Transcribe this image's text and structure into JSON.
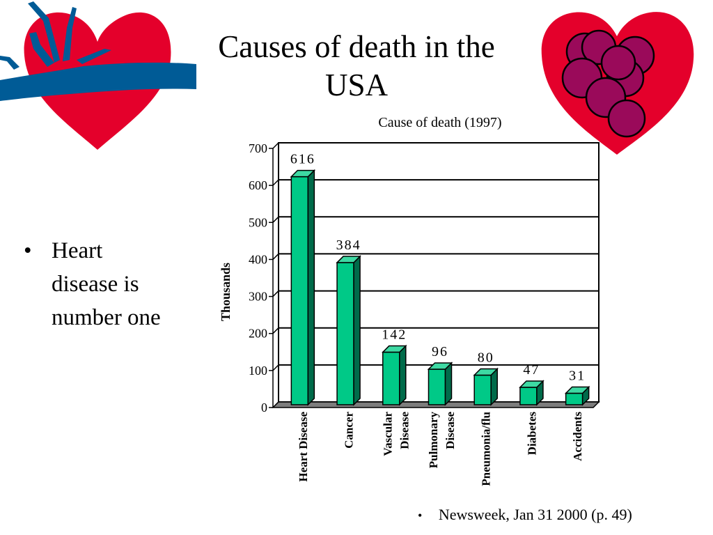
{
  "slide": {
    "title_line1": "Causes of death in the",
    "title_line2": "USA",
    "bullet": {
      "marker": "•",
      "lines": [
        "Heart",
        "disease is",
        "number one"
      ]
    },
    "source": {
      "marker": "•",
      "text": "Newsweek, Jan 31 2000 (p. 49)"
    }
  },
  "icons": {
    "left": "heart-with-blue-vessel-icon",
    "right": "heart-with-purple-cells-icon"
  },
  "colors": {
    "heart_red": "#e4002b",
    "vessel_blue": "#005b96",
    "cell_purple": "#9a0a5a",
    "bar_face": "#00c987",
    "bar_side": "#006b4a",
    "bar_top": "#3ed9a3",
    "floor": "#7d7d7d"
  },
  "chart_data": {
    "type": "bar",
    "title": "Cause of death (1997)",
    "ylabel": "Thousands",
    "xlabel": "",
    "categories": [
      "Heart Disease",
      "Cancer",
      "Vascular Disease",
      "Pulmonary Disease",
      "Pneumonia/flu",
      "Diabetes",
      "Accidents"
    ],
    "category_label_lines": [
      [
        "Heart Disease"
      ],
      [
        "Cancer"
      ],
      [
        "Vascular",
        "Disease"
      ],
      [
        "Pulmonary",
        "Disease"
      ],
      [
        "Pneumonia/flu"
      ],
      [
        "Diabetes"
      ],
      [
        "Accidents"
      ]
    ],
    "values": [
      616,
      384,
      142,
      96,
      80,
      47,
      31
    ],
    "ylim": [
      0,
      700
    ],
    "yticks": [
      0,
      100,
      200,
      300,
      400,
      500,
      600,
      700
    ],
    "grid": true,
    "legend": "none"
  }
}
